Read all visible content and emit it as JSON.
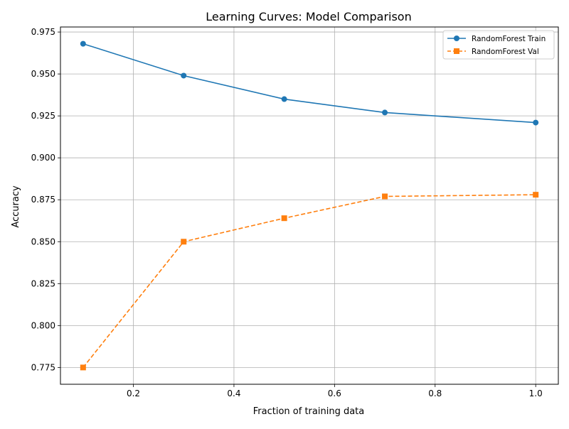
{
  "chart_data": {
    "type": "line",
    "title": "Learning Curves: Model Comparison",
    "xlabel": "Fraction of training data",
    "ylabel": "Accuracy",
    "xlim": [
      0.055,
      1.045
    ],
    "ylim": [
      0.765,
      0.978
    ],
    "xticks": [
      0.2,
      0.4,
      0.6,
      0.8,
      1.0
    ],
    "xtick_labels": [
      "0.2",
      "0.4",
      "0.6",
      "0.8",
      "1.0"
    ],
    "yticks": [
      0.775,
      0.8,
      0.825,
      0.85,
      0.875,
      0.9,
      0.925,
      0.95,
      0.975
    ],
    "ytick_labels": [
      "0.775",
      "0.800",
      "0.825",
      "0.850",
      "0.875",
      "0.900",
      "0.925",
      "0.950",
      "0.975"
    ],
    "grid": true,
    "legend_position": "top-right",
    "x": [
      0.1,
      0.3,
      0.5,
      0.7,
      1.0
    ],
    "series": [
      {
        "name": "RandomForest Train",
        "values": [
          0.968,
          0.949,
          0.935,
          0.927,
          0.921
        ],
        "color": "#1f77b4",
        "marker": "circle",
        "line_style": "solid"
      },
      {
        "name": "RandomForest Val",
        "values": [
          0.775,
          0.85,
          0.864,
          0.877,
          0.878
        ],
        "color": "#ff7f0e",
        "marker": "square",
        "line_style": "dashed"
      }
    ]
  }
}
